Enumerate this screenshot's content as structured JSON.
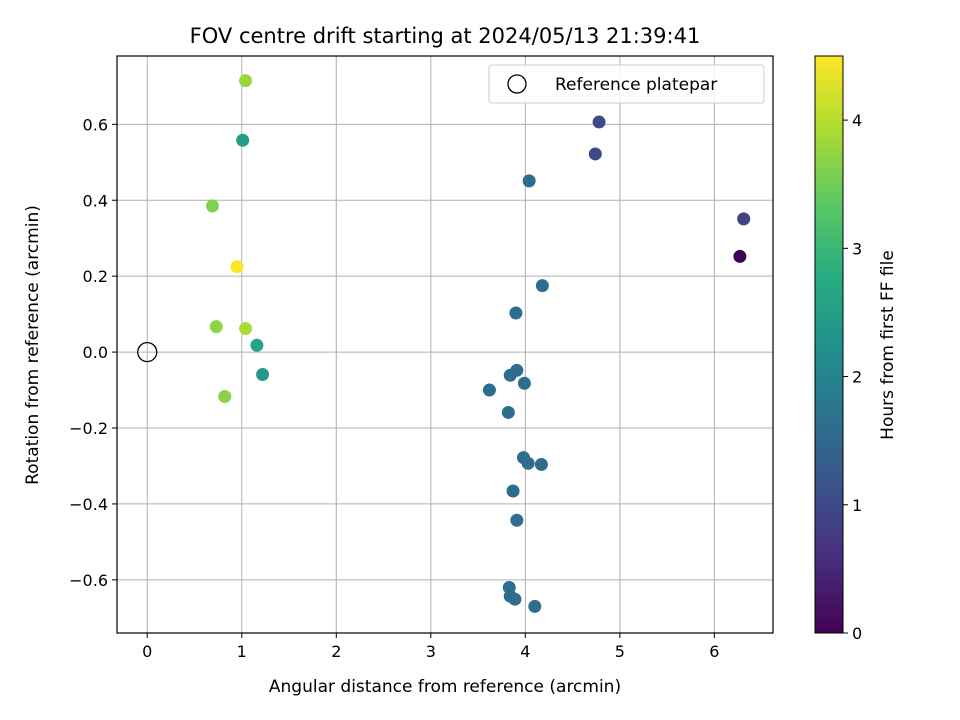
{
  "chart_data": {
    "type": "scatter",
    "title": "FOV centre drift starting at 2024/05/13 21:39:41",
    "xlabel": "Angular distance from reference (arcmin)",
    "ylabel": "Rotation from reference (arcmin)",
    "xlim": [
      -0.32,
      6.62
    ],
    "ylim": [
      -0.74,
      0.78
    ],
    "xticks": [
      0,
      1,
      2,
      3,
      4,
      5,
      6
    ],
    "yticks": [
      -0.6,
      -0.4,
      -0.2,
      0.0,
      0.2,
      0.4,
      0.6
    ],
    "ytick_labels": [
      "−0.6",
      "−0.4",
      "−0.2",
      "0.0",
      "0.2",
      "0.4",
      "0.6"
    ],
    "grid": true,
    "colormap": "viridis",
    "colorbar": {
      "label": "Hours from first FF file",
      "range": [
        0,
        4.5
      ],
      "ticks": [
        0,
        1,
        2,
        3,
        4
      ]
    },
    "legend": {
      "placement": "top-right",
      "entries": [
        "Reference platepar"
      ]
    },
    "reference_point": {
      "name": "Reference platepar",
      "x": 0,
      "y": 0
    },
    "points": [
      {
        "x": 1.04,
        "y": 0.715,
        "h": 3.8
      },
      {
        "x": 1.01,
        "y": 0.558,
        "h": 2.5
      },
      {
        "x": 0.69,
        "y": 0.385,
        "h": 3.6
      },
      {
        "x": 0.95,
        "y": 0.225,
        "h": 4.5
      },
      {
        "x": 0.73,
        "y": 0.067,
        "h": 3.7
      },
      {
        "x": 1.04,
        "y": 0.062,
        "h": 3.9
      },
      {
        "x": 1.16,
        "y": 0.018,
        "h": 2.6
      },
      {
        "x": 1.22,
        "y": -0.059,
        "h": 2.4
      },
      {
        "x": 0.82,
        "y": -0.117,
        "h": 3.7
      },
      {
        "x": 4.78,
        "y": 0.606,
        "h": 1.0
      },
      {
        "x": 4.74,
        "y": 0.522,
        "h": 1.0
      },
      {
        "x": 4.04,
        "y": 0.451,
        "h": 1.6
      },
      {
        "x": 6.31,
        "y": 0.351,
        "h": 0.9
      },
      {
        "x": 6.27,
        "y": 0.252,
        "h": 0.0
      },
      {
        "x": 4.18,
        "y": 0.175,
        "h": 1.6
      },
      {
        "x": 3.9,
        "y": 0.103,
        "h": 1.6
      },
      {
        "x": 3.91,
        "y": -0.048,
        "h": 1.6
      },
      {
        "x": 3.84,
        "y": -0.061,
        "h": 1.6
      },
      {
        "x": 3.99,
        "y": -0.082,
        "h": 1.6
      },
      {
        "x": 3.62,
        "y": -0.1,
        "h": 1.6
      },
      {
        "x": 3.82,
        "y": -0.159,
        "h": 1.6
      },
      {
        "x": 3.98,
        "y": -0.278,
        "h": 1.6
      },
      {
        "x": 4.03,
        "y": -0.293,
        "h": 1.6
      },
      {
        "x": 4.17,
        "y": -0.296,
        "h": 1.6
      },
      {
        "x": 3.87,
        "y": -0.366,
        "h": 1.6
      },
      {
        "x": 3.91,
        "y": -0.443,
        "h": 1.6
      },
      {
        "x": 3.83,
        "y": -0.62,
        "h": 1.6
      },
      {
        "x": 3.84,
        "y": -0.643,
        "h": 1.6
      },
      {
        "x": 3.89,
        "y": -0.651,
        "h": 1.6
      },
      {
        "x": 4.1,
        "y": -0.67,
        "h": 1.6
      }
    ]
  }
}
